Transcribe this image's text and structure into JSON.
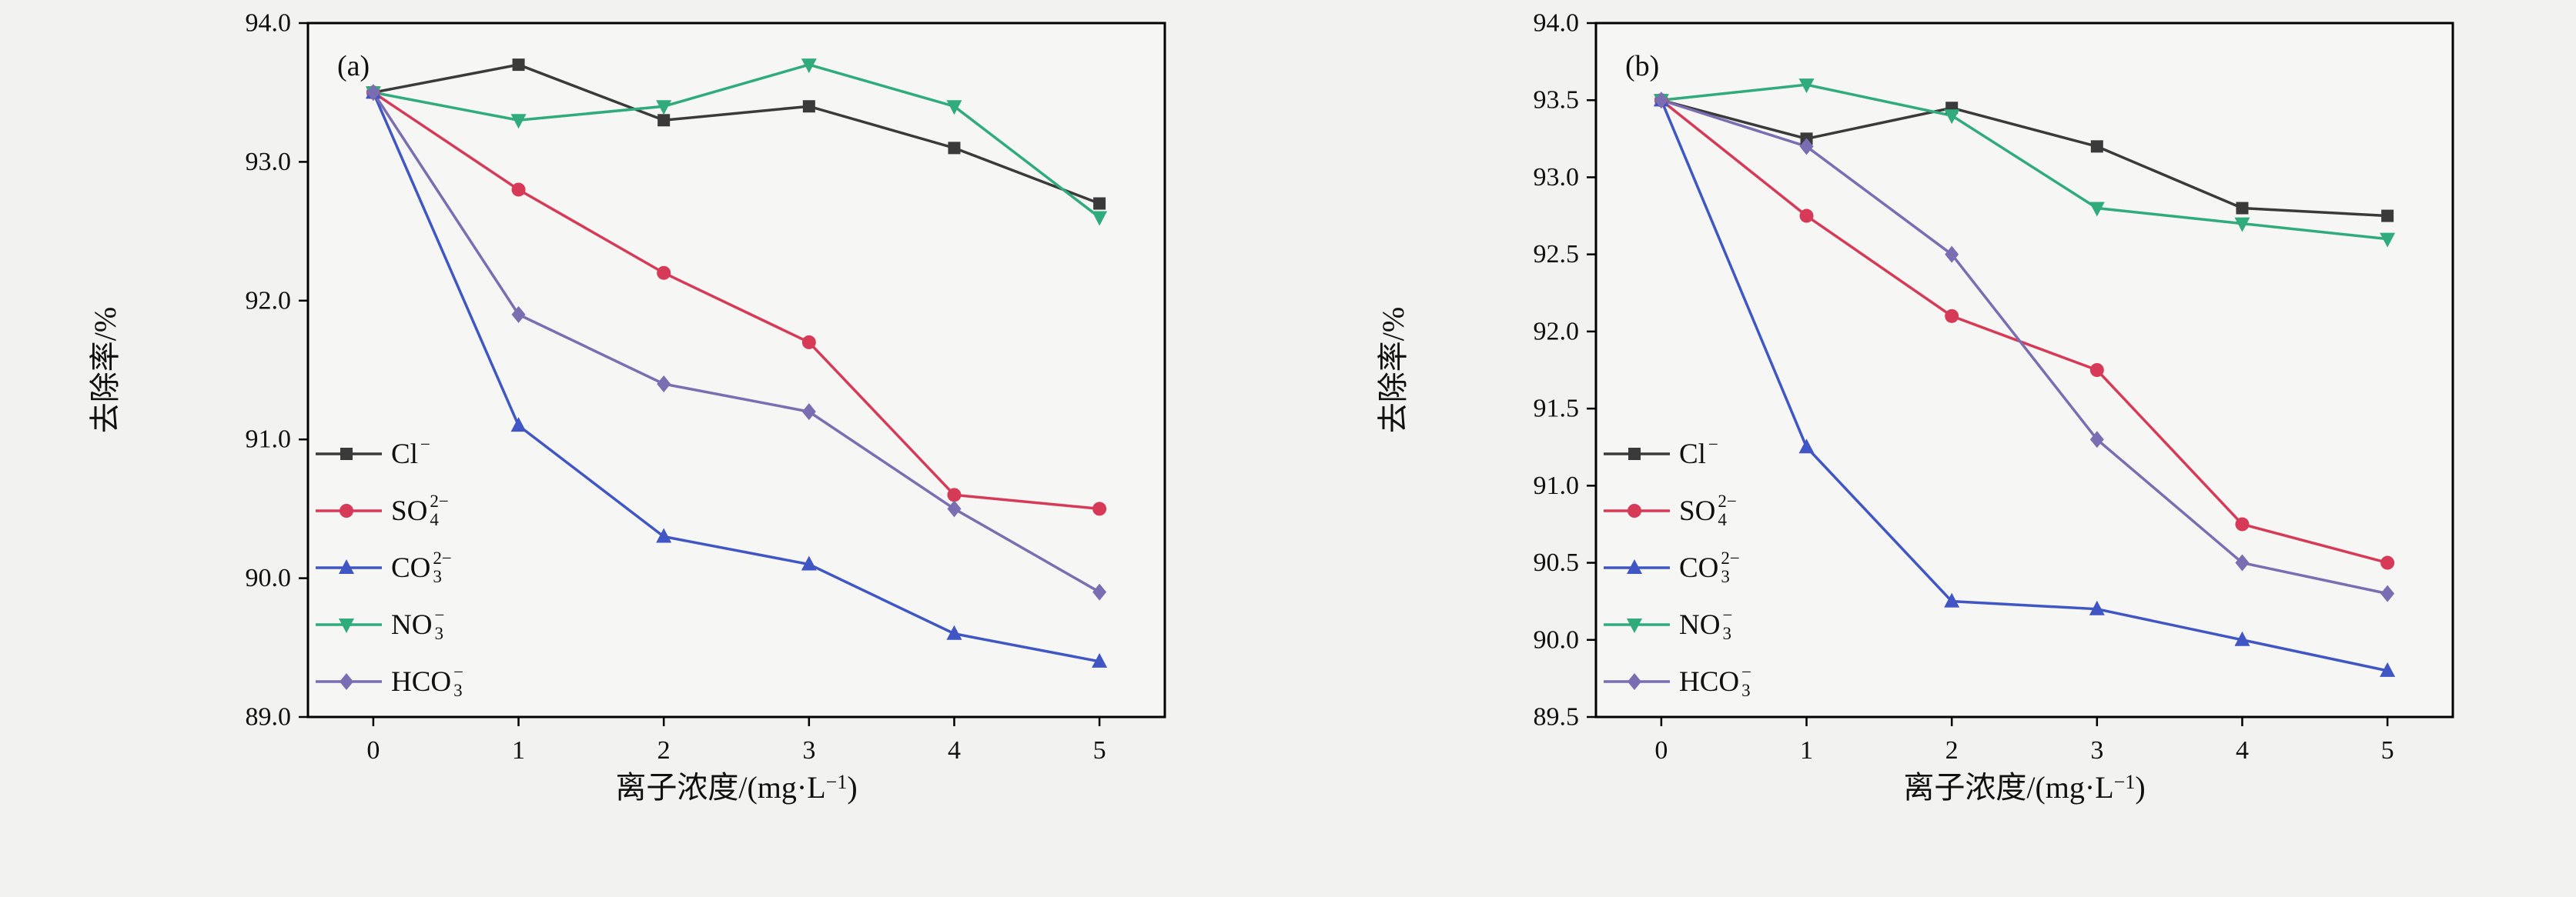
{
  "figure": {
    "background": "#f2f2f0",
    "plot_background": "#f6f6f4",
    "axis_color": "#000000",
    "text_color": "#101010"
  },
  "chart_data": [
    {
      "type": "line",
      "panel_label": "(a)",
      "xlabel": {
        "pre": "离子浓度/(mg·L",
        "sup": "−1",
        "post": ")"
      },
      "ylabel": "去除率/%",
      "x": [
        0,
        1,
        2,
        3,
        4,
        5
      ],
      "xticks": [
        0,
        1,
        2,
        3,
        4,
        5
      ],
      "xlim": [
        -0.45,
        5.45
      ],
      "ylim": [
        89.0,
        94.0
      ],
      "ytick_step": 1.0,
      "grid": false,
      "legend_position": "inside-left-bottom",
      "series": [
        {
          "name": "chloride",
          "label": {
            "base": "Cl",
            "sup": "−",
            "sub": ""
          },
          "color": "#3a3a3a",
          "marker": "square",
          "values": [
            93.5,
            93.7,
            93.3,
            93.4,
            93.1,
            92.7
          ]
        },
        {
          "name": "sulfate",
          "label": {
            "base": "SO",
            "sup": "2−",
            "sub": "4"
          },
          "color": "#d63a56",
          "marker": "circle",
          "values": [
            93.5,
            92.8,
            92.2,
            91.7,
            90.6,
            90.5
          ]
        },
        {
          "name": "carbonate",
          "label": {
            "base": "CO",
            "sup": "2−",
            "sub": "3"
          },
          "color": "#3f56c4",
          "marker": "triangle-up",
          "values": [
            93.5,
            91.1,
            90.3,
            90.1,
            89.6,
            89.4
          ]
        },
        {
          "name": "nitrate",
          "label": {
            "base": "NO",
            "sup": "−",
            "sub": "3"
          },
          "color": "#2fab7c",
          "marker": "triangle-down",
          "values": [
            93.5,
            93.3,
            93.4,
            93.7,
            93.4,
            92.6
          ]
        },
        {
          "name": "bicarbonate",
          "label": {
            "base": "HCO",
            "sup": "−",
            "sub": "3"
          },
          "color": "#7b6db2",
          "marker": "diamond",
          "values": [
            93.5,
            91.9,
            91.4,
            91.2,
            90.5,
            89.9
          ]
        }
      ]
    },
    {
      "type": "line",
      "panel_label": "(b)",
      "xlabel": {
        "pre": "离子浓度/(mg·L",
        "sup": "−1",
        "post": ")"
      },
      "ylabel": "去除率/%",
      "x": [
        0,
        1,
        2,
        3,
        4,
        5
      ],
      "xticks": [
        0,
        1,
        2,
        3,
        4,
        5
      ],
      "xlim": [
        -0.45,
        5.45
      ],
      "ylim": [
        89.5,
        94.0
      ],
      "ytick_step": 0.5,
      "grid": false,
      "legend_position": "inside-left-bottom",
      "series": [
        {
          "name": "chloride",
          "label": {
            "base": "Cl",
            "sup": "−",
            "sub": ""
          },
          "color": "#3a3a3a",
          "marker": "square",
          "values": [
            93.5,
            93.25,
            93.45,
            93.2,
            92.8,
            92.75
          ]
        },
        {
          "name": "sulfate",
          "label": {
            "base": "SO",
            "sup": "2−",
            "sub": "4"
          },
          "color": "#d63a56",
          "marker": "circle",
          "values": [
            93.5,
            92.75,
            92.1,
            91.75,
            90.75,
            90.5
          ]
        },
        {
          "name": "carbonate",
          "label": {
            "base": "CO",
            "sup": "2−",
            "sub": "3"
          },
          "color": "#3f56c4",
          "marker": "triangle-up",
          "values": [
            93.5,
            91.25,
            90.25,
            90.2,
            90.0,
            89.8
          ]
        },
        {
          "name": "nitrate",
          "label": {
            "base": "NO",
            "sup": "−",
            "sub": "3"
          },
          "color": "#2fab7c",
          "marker": "triangle-down",
          "values": [
            93.5,
            93.6,
            93.4,
            92.8,
            92.7,
            92.6
          ]
        },
        {
          "name": "bicarbonate",
          "label": {
            "base": "HCO",
            "sup": "−",
            "sub": "3"
          },
          "color": "#7b6db2",
          "marker": "diamond",
          "values": [
            93.5,
            93.2,
            92.5,
            91.3,
            90.5,
            90.3
          ]
        }
      ]
    }
  ]
}
